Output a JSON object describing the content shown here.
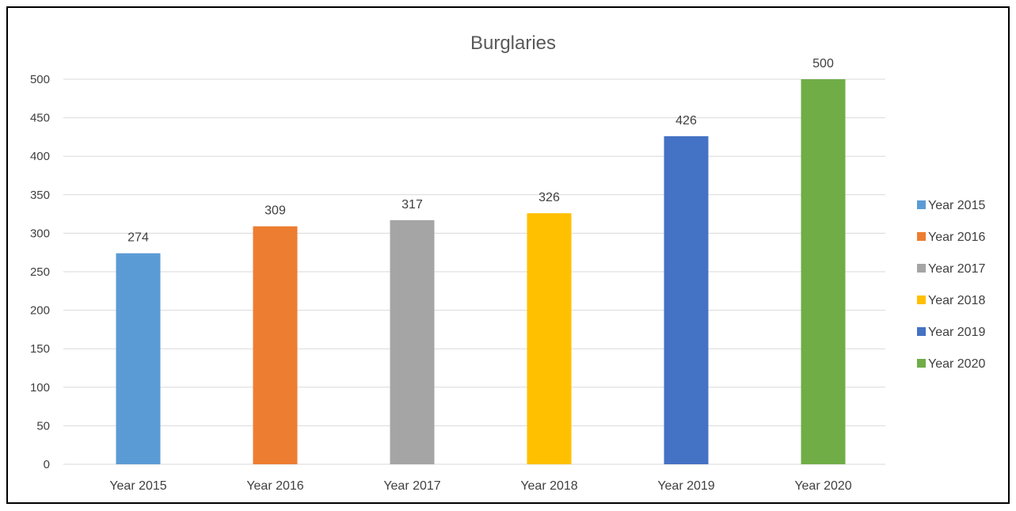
{
  "chart_data": {
    "type": "bar",
    "title": "Burglaries",
    "xlabel": "",
    "ylabel": "",
    "ylim": [
      0,
      500
    ],
    "yticks": [
      0,
      50,
      100,
      150,
      200,
      250,
      300,
      350,
      400,
      450,
      500
    ],
    "categories": [
      "Year 2015",
      "Year 2016",
      "Year 2017",
      "Year 2018",
      "Year 2019",
      "Year 2020"
    ],
    "values": [
      274,
      309,
      317,
      326,
      426,
      500
    ],
    "colors": [
      "#5b9bd5",
      "#ed7d31",
      "#a5a5a5",
      "#ffc000",
      "#4472c4",
      "#70ad47"
    ],
    "grid": true,
    "legend_position": "right",
    "legend": [
      "Year 2015",
      "Year 2016",
      "Year 2017",
      "Year 2018",
      "Year 2019",
      "Year 2020"
    ]
  }
}
